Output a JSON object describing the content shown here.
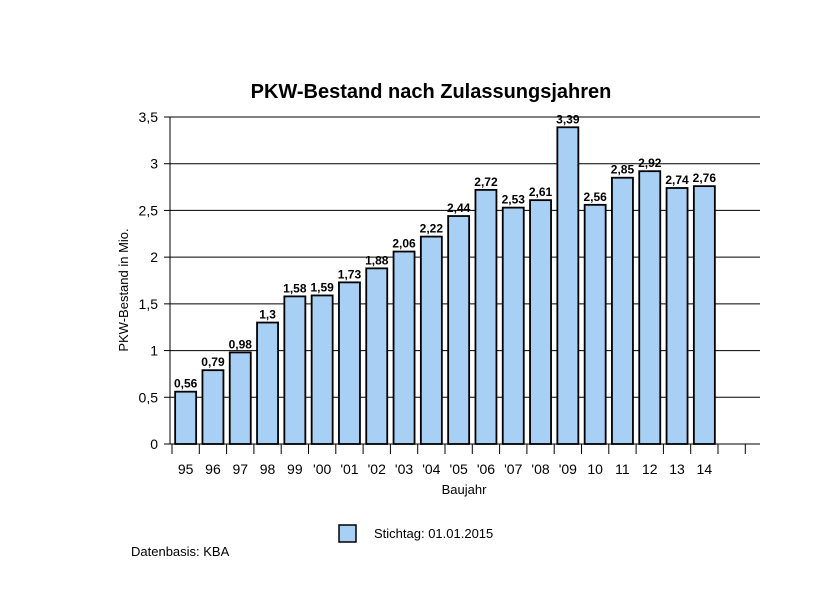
{
  "chart_data": {
    "type": "bar",
    "title": "PKW-Bestand nach Zulassungsjahren",
    "xlabel": "Baujahr",
    "ylabel": "PKW-Bestand in Mio.",
    "categories": [
      "95",
      "96",
      "97",
      "98",
      "99",
      "'00",
      "'01",
      "'02",
      "'03",
      "'04",
      "'05",
      "'06",
      "'07",
      "'08",
      "'09",
      "10",
      "11",
      "12",
      "13",
      "14"
    ],
    "values": [
      0.56,
      0.79,
      0.98,
      1.3,
      1.58,
      1.59,
      1.73,
      1.88,
      2.06,
      2.22,
      2.44,
      2.72,
      2.53,
      2.61,
      3.39,
      2.56,
      2.85,
      2.92,
      2.74,
      2.76
    ],
    "value_labels": [
      "0,56",
      "0,79",
      "0,98",
      "1,3",
      "1,58",
      "1,59",
      "1,73",
      "1,88",
      "2,06",
      "2,22",
      "2,44",
      "2,72",
      "2,53",
      "2,61",
      "3,39",
      "2,56",
      "2,85",
      "2,92",
      "2,74",
      "2,76"
    ],
    "ylim": [
      0,
      3.5
    ],
    "yticks": [
      {
        "value": 0,
        "label": "0"
      },
      {
        "value": 0.5,
        "label": "0,5"
      },
      {
        "value": 1,
        "label": "1"
      },
      {
        "value": 1.5,
        "label": "1,5"
      },
      {
        "value": 2,
        "label": "2"
      },
      {
        "value": 2.5,
        "label": "2,5"
      },
      {
        "value": 3,
        "label": "3"
      },
      {
        "value": 3.5,
        "label": "3,5"
      }
    ],
    "grid": true,
    "legend": {
      "position": "bottom-center",
      "entries": [
        "Stichtag: 01.01.2015"
      ]
    },
    "bar_color": "#a8d0f5",
    "bar_edge_color": "#000000"
  },
  "footer": {
    "source": "Datenbasis: KBA"
  }
}
